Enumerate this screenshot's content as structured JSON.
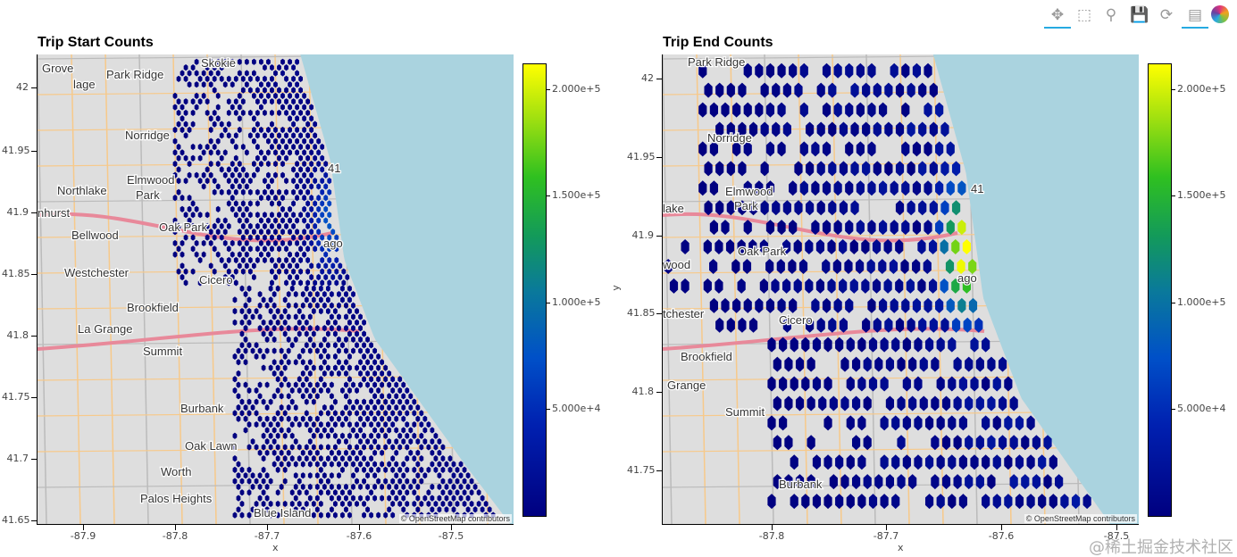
{
  "toolbar": {
    "tools": [
      {
        "name": "pan-tool",
        "icon": "✥",
        "active": true
      },
      {
        "name": "box-zoom-tool",
        "icon": "⬚",
        "active": false
      },
      {
        "name": "wheel-zoom-tool",
        "icon": "⚲",
        "active": false
      },
      {
        "name": "save-tool",
        "icon": "💾",
        "active": false
      },
      {
        "name": "reset-tool",
        "icon": "⟳",
        "active": false
      },
      {
        "name": "hover-tool",
        "icon": "▤",
        "active": true
      }
    ]
  },
  "watermark": "@稀土掘金技术社区",
  "attribution": "© OpenStreetMap contributors",
  "colors": {
    "lake": "#aad3df",
    "land": "#dedede",
    "colormap": [
      "#000080",
      "#0020b0",
      "#0050c8",
      "#0a7a9a",
      "#139a5a",
      "#2fc020",
      "#a0e010",
      "#ffff00"
    ]
  },
  "chart_data": [
    {
      "type": "heatmap",
      "subtype": "hexbin-on-map-tiles",
      "title": "Trip Start Counts",
      "xlabel": "x",
      "ylabel": "",
      "xticks": [
        "-87.9",
        "-87.8",
        "-87.7",
        "-87.6",
        "-87.5"
      ],
      "yticks": [
        "42",
        "41.95",
        "41.9",
        "41.85",
        "41.8",
        "41.75",
        "41.7",
        "41.65"
      ],
      "xlim": [
        -87.95,
        -87.43
      ],
      "ylim": [
        41.645,
        42.027
      ],
      "colorbar": {
        "ticks": [
          "2.000e+5",
          "1.500e+5",
          "1.000e+5",
          "5.000e+4"
        ],
        "range": [
          0,
          210000
        ]
      },
      "peak": {
        "lon": -87.63,
        "lat": 41.89,
        "count": 60000
      },
      "map_labels": [
        "Grove",
        "lage",
        "Park Ridge",
        "Skokie",
        "Norridge",
        "Elmwood",
        "Park",
        "Northlake",
        "nhurst",
        "Bellwood",
        "Oak Park",
        "Westchester",
        "Cicero",
        "Brookfield",
        "La Grange",
        "Summit",
        "Burbank",
        "Oak Lawn",
        "Worth",
        "Palos Heights",
        "Blue Island",
        "41",
        "ago"
      ]
    },
    {
      "type": "heatmap",
      "subtype": "hexbin-on-map-tiles",
      "title": "Trip End Counts",
      "xlabel": "x",
      "ylabel": "y",
      "xticks": [
        "-87.8",
        "-87.7",
        "-87.6",
        "-87.5"
      ],
      "yticks": [
        "42",
        "41.95",
        "41.9",
        "41.85",
        "41.8",
        "41.75"
      ],
      "xlim": [
        -87.895,
        -87.481
      ],
      "ylim": [
        41.719,
        42.021
      ],
      "colorbar": {
        "ticks": [
          "2.000e+5",
          "1.500e+5",
          "1.000e+5",
          "5.000e+4"
        ],
        "range": [
          0,
          210000
        ]
      },
      "peak": {
        "lon": -87.632,
        "lat": 41.89,
        "count": 210000
      },
      "map_labels": [
        "Park Ridge",
        "Norridge",
        "Elmwood",
        "Park",
        "lake",
        "Oak Park",
        "wood",
        "tchester",
        "Cicero",
        "Brookfield",
        "Grange",
        "Summit",
        "Burbank",
        "41",
        "ago"
      ]
    }
  ]
}
